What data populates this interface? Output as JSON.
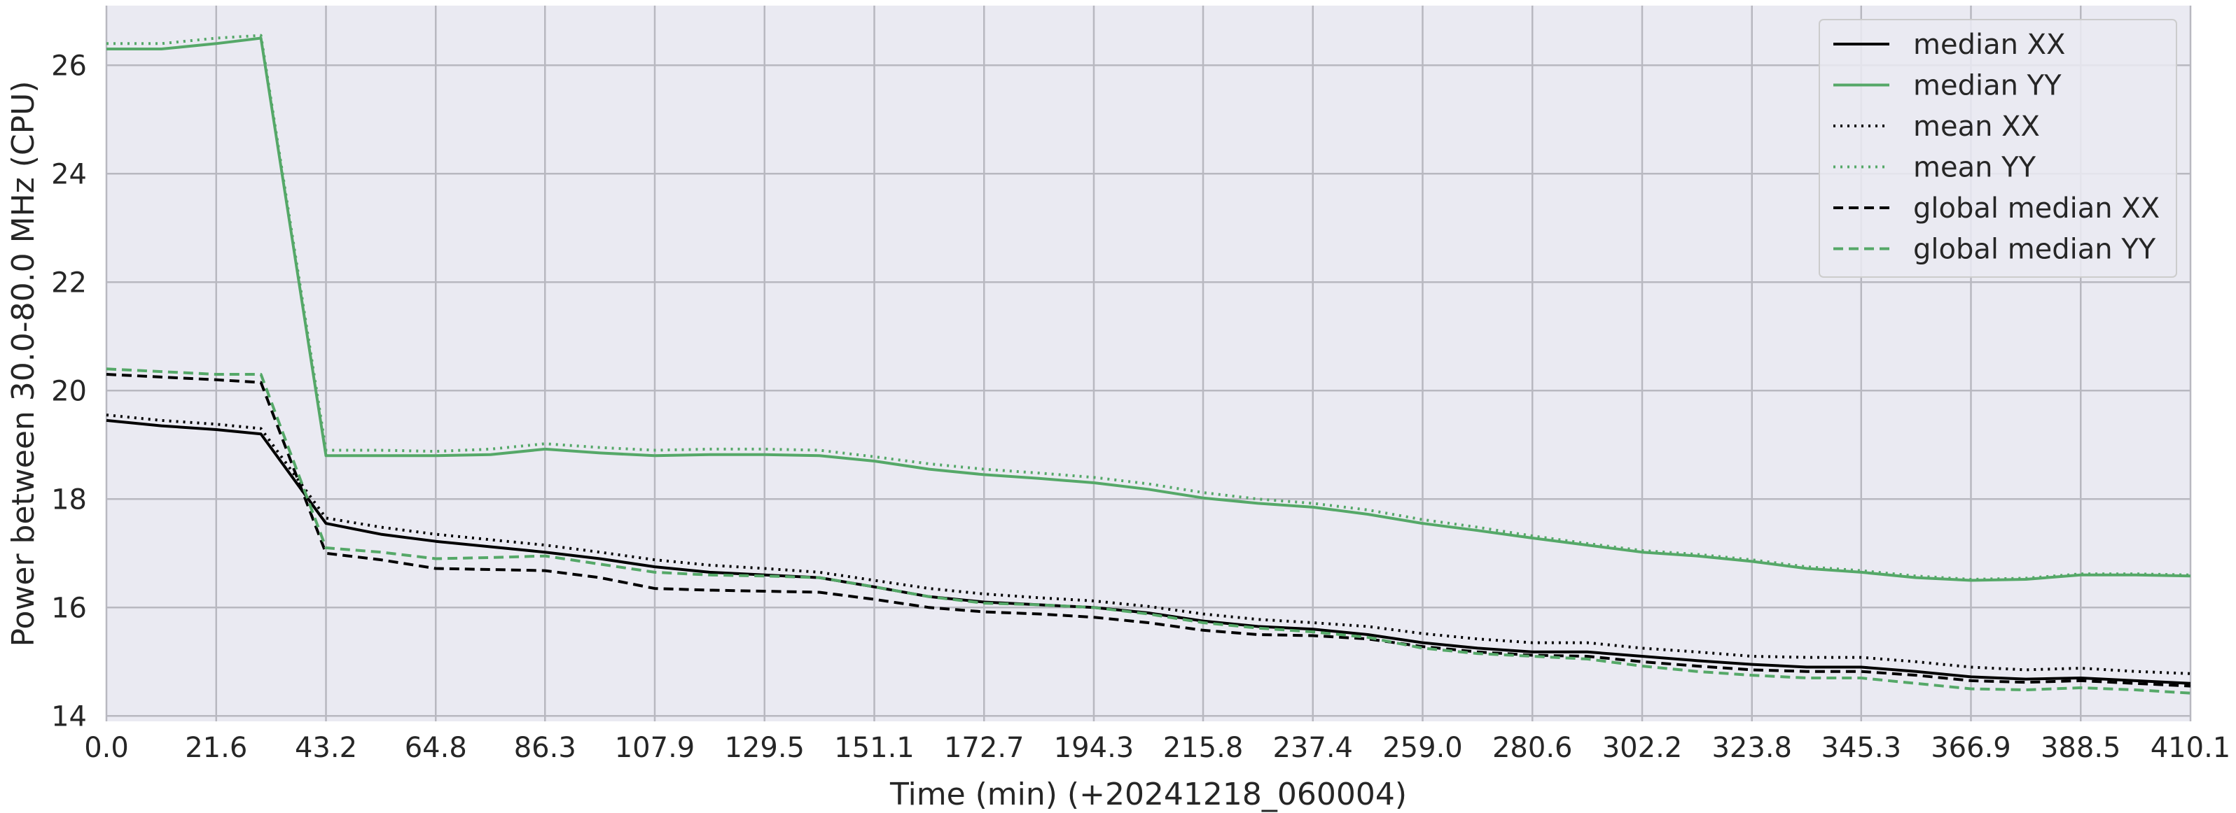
{
  "chart_data": {
    "type": "line",
    "xlabel": "Time (min) (+20241218_060004)",
    "ylabel": "Power between 30.0-80.0 MHz  (CPU)",
    "xlim": [
      0,
      410.1
    ],
    "ylim": [
      13.9,
      27.1
    ],
    "x_ticks": [
      "0.0",
      "21.6",
      "43.2",
      "64.8",
      "86.3",
      "107.9",
      "129.5",
      "151.1",
      "172.7",
      "194.3",
      "215.8",
      "237.4",
      "259.0",
      "280.6",
      "302.2",
      "323.8",
      "345.3",
      "366.9",
      "388.5",
      "410.1"
    ],
    "y_ticks": [
      "14",
      "16",
      "18",
      "20",
      "22",
      "24",
      "26"
    ],
    "grid": true,
    "legend_position": "top-right",
    "x": [
      0,
      10.8,
      21.6,
      30.4,
      43.2,
      54,
      64.8,
      75.6,
      86.3,
      97.1,
      107.9,
      118.7,
      129.5,
      140.3,
      151.1,
      161.9,
      172.7,
      183.5,
      194.3,
      205,
      215.8,
      226.6,
      237.4,
      248.2,
      259,
      269.8,
      280.6,
      291.4,
      302.2,
      313,
      323.8,
      334.6,
      345.3,
      356.1,
      366.9,
      377.7,
      388.5,
      399.3,
      410.1
    ],
    "series": [
      {
        "name": "median XX",
        "color": "#000000",
        "dash": "solid",
        "values": [
          19.45,
          19.35,
          19.28,
          19.2,
          17.55,
          17.35,
          17.22,
          17.12,
          17.02,
          16.9,
          16.75,
          16.65,
          16.6,
          16.55,
          16.38,
          16.2,
          16.1,
          16.05,
          16.0,
          15.9,
          15.75,
          15.65,
          15.6,
          15.5,
          15.35,
          15.25,
          15.18,
          15.18,
          15.1,
          15.02,
          14.95,
          14.9,
          14.9,
          14.82,
          14.72,
          14.68,
          14.7,
          14.65,
          14.6
        ]
      },
      {
        "name": "median YY",
        "color": "#55a868",
        "dash": "solid",
        "values": [
          26.3,
          26.3,
          26.4,
          26.5,
          18.8,
          18.8,
          18.8,
          18.82,
          18.92,
          18.85,
          18.8,
          18.82,
          18.82,
          18.8,
          18.7,
          18.55,
          18.45,
          18.38,
          18.3,
          18.18,
          18.02,
          17.92,
          17.85,
          17.72,
          17.55,
          17.42,
          17.28,
          17.15,
          17.02,
          16.95,
          16.85,
          16.72,
          16.65,
          16.55,
          16.5,
          16.52,
          16.6,
          16.6,
          16.58
        ]
      },
      {
        "name": "mean XX",
        "color": "#000000",
        "dash": "dotted",
        "values": [
          19.55,
          19.45,
          19.38,
          19.3,
          17.65,
          17.48,
          17.35,
          17.25,
          17.15,
          17.02,
          16.88,
          16.78,
          16.72,
          16.65,
          16.5,
          16.35,
          16.25,
          16.18,
          16.12,
          16.02,
          15.88,
          15.78,
          15.72,
          15.65,
          15.52,
          15.42,
          15.35,
          15.35,
          15.25,
          15.18,
          15.1,
          15.08,
          15.08,
          15.0,
          14.9,
          14.85,
          14.88,
          14.82,
          14.78
        ]
      },
      {
        "name": "mean YY",
        "color": "#55a868",
        "dash": "dotted",
        "values": [
          26.4,
          26.4,
          26.5,
          26.55,
          18.9,
          18.9,
          18.88,
          18.92,
          19.02,
          18.95,
          18.9,
          18.92,
          18.92,
          18.9,
          18.78,
          18.65,
          18.55,
          18.48,
          18.4,
          18.28,
          18.12,
          18.0,
          17.92,
          17.8,
          17.62,
          17.48,
          17.32,
          17.18,
          17.05,
          16.98,
          16.88,
          16.75,
          16.68,
          16.58,
          16.52,
          16.54,
          16.62,
          16.62,
          16.6
        ]
      },
      {
        "name": "global median XX",
        "color": "#000000",
        "dash": "dashed",
        "values": [
          20.3,
          20.25,
          20.2,
          20.15,
          17.0,
          16.88,
          16.72,
          16.7,
          16.68,
          16.55,
          16.35,
          16.32,
          16.3,
          16.28,
          16.15,
          16.0,
          15.92,
          15.88,
          15.82,
          15.72,
          15.58,
          15.5,
          15.48,
          15.42,
          15.28,
          15.18,
          15.12,
          15.1,
          15.0,
          14.92,
          14.85,
          14.82,
          14.82,
          14.75,
          14.65,
          14.62,
          14.65,
          14.6,
          14.55
        ]
      },
      {
        "name": "global median YY",
        "color": "#55a868",
        "dash": "dashed",
        "values": [
          20.4,
          20.35,
          20.3,
          20.3,
          17.1,
          17.02,
          16.9,
          16.92,
          16.95,
          16.8,
          16.65,
          16.6,
          16.58,
          16.55,
          16.38,
          16.2,
          16.08,
          16.05,
          16.0,
          15.88,
          15.72,
          15.62,
          15.55,
          15.45,
          15.25,
          15.15,
          15.1,
          15.05,
          14.92,
          14.82,
          14.75,
          14.7,
          14.7,
          14.6,
          14.5,
          14.48,
          14.52,
          14.48,
          14.42
        ]
      }
    ]
  }
}
